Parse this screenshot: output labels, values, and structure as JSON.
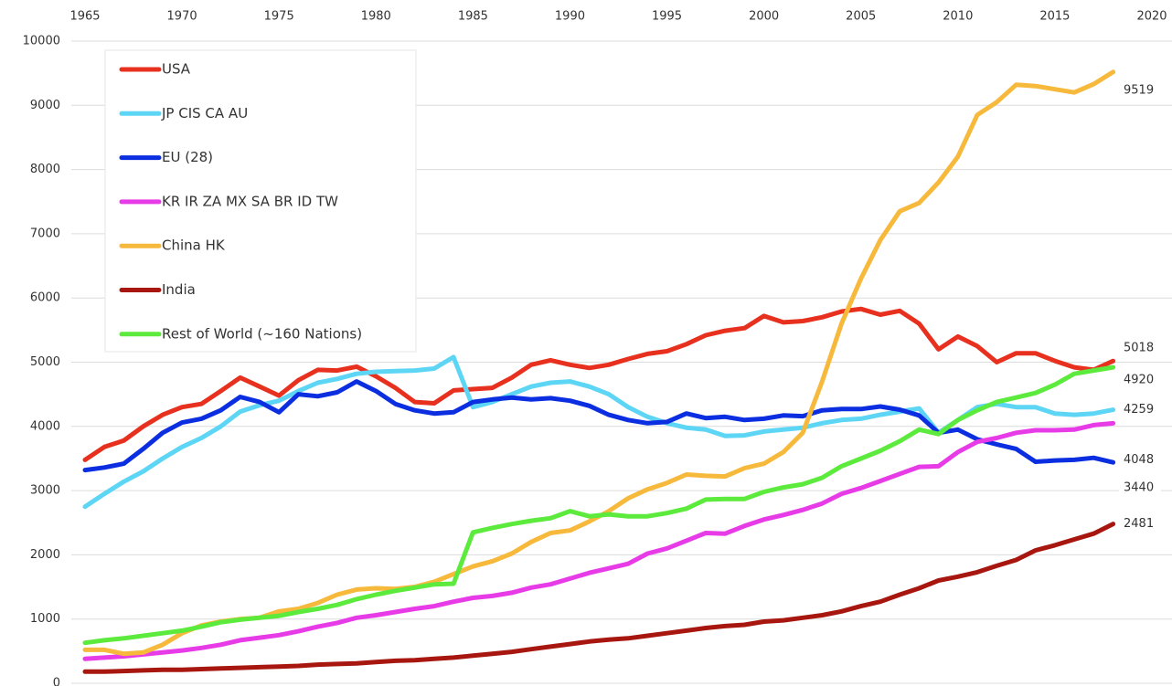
{
  "chart_data": {
    "type": "line",
    "x": [
      1965,
      1966,
      1967,
      1968,
      1969,
      1970,
      1971,
      1972,
      1973,
      1974,
      1975,
      1976,
      1977,
      1978,
      1979,
      1980,
      1981,
      1982,
      1983,
      1984,
      1985,
      1986,
      1987,
      1988,
      1989,
      1990,
      1991,
      1992,
      1993,
      1994,
      1995,
      1996,
      1997,
      1998,
      1999,
      2000,
      2001,
      2002,
      2003,
      2004,
      2005,
      2006,
      2007,
      2008,
      2009,
      2010,
      2011,
      2012,
      2013,
      2014,
      2015,
      2016,
      2017,
      2018
    ],
    "xlim": [
      1965,
      2020
    ],
    "xticks": [
      1965,
      1970,
      1975,
      1980,
      1985,
      1990,
      1995,
      2000,
      2005,
      2010,
      2015,
      2020
    ],
    "ylim": [
      0,
      10000
    ],
    "yticks": [
      0,
      1000,
      2000,
      3000,
      4000,
      5000,
      6000,
      7000,
      8000,
      9000,
      10000
    ],
    "grid": true,
    "legend": "upper left",
    "series": [
      {
        "name": "USA",
        "color": "#e8301f",
        "values": [
          3480,
          3680,
          3780,
          4000,
          4180,
          4300,
          4350,
          4550,
          4760,
          4620,
          4480,
          4720,
          4880,
          4870,
          4930,
          4780,
          4600,
          4380,
          4360,
          4560,
          4580,
          4600,
          4760,
          4960,
          5030,
          4960,
          4910,
          4960,
          5050,
          5130,
          5170,
          5280,
          5420,
          5490,
          5530,
          5720,
          5620,
          5640,
          5700,
          5790,
          5830,
          5740,
          5800,
          5600,
          5200,
          5400,
          5250,
          5000,
          5140,
          5140,
          5020,
          4920,
          4880,
          5018
        ]
      },
      {
        "name": "JP CIS CA AU",
        "color": "#5dd5f5",
        "values": [
          2750,
          2950,
          3140,
          3300,
          3500,
          3680,
          3820,
          4000,
          4230,
          4330,
          4400,
          4550,
          4680,
          4740,
          4820,
          4850,
          4860,
          4870,
          4900,
          5080,
          4300,
          4380,
          4500,
          4620,
          4680,
          4700,
          4620,
          4500,
          4300,
          4150,
          4050,
          3980,
          3950,
          3850,
          3860,
          3920,
          3950,
          3980,
          4050,
          4100,
          4120,
          4180,
          4230,
          4280,
          3900,
          4100,
          4300,
          4350,
          4300,
          4300,
          4200,
          4180,
          4200,
          4259
        ]
      },
      {
        "name": "EU (28)",
        "color": "#0a2ee0",
        "values": [
          3320,
          3360,
          3420,
          3650,
          3900,
          4060,
          4120,
          4250,
          4460,
          4380,
          4220,
          4500,
          4470,
          4530,
          4700,
          4550,
          4350,
          4250,
          4200,
          4220,
          4380,
          4420,
          4450,
          4420,
          4440,
          4400,
          4320,
          4180,
          4100,
          4050,
          4070,
          4200,
          4130,
          4150,
          4100,
          4120,
          4170,
          4160,
          4250,
          4270,
          4270,
          4310,
          4260,
          4170,
          3900,
          3950,
          3800,
          3720,
          3650,
          3450,
          3470,
          3480,
          3510,
          3440
        ]
      },
      {
        "name": "KR IR ZA MX SA BR ID TW",
        "color": "#e83be8",
        "values": [
          380,
          400,
          420,
          450,
          480,
          510,
          550,
          600,
          670,
          710,
          750,
          810,
          880,
          940,
          1020,
          1060,
          1110,
          1160,
          1200,
          1270,
          1330,
          1360,
          1410,
          1490,
          1540,
          1630,
          1720,
          1790,
          1860,
          2020,
          2100,
          2220,
          2340,
          2330,
          2450,
          2550,
          2620,
          2700,
          2800,
          2950,
          3040,
          3150,
          3260,
          3370,
          3380,
          3600,
          3760,
          3820,
          3900,
          3940,
          3940,
          3950,
          4020,
          4048
        ]
      },
      {
        "name": "China HK",
        "color": "#f6b93b",
        "values": [
          520,
          520,
          460,
          480,
          600,
          780,
          900,
          960,
          1000,
          1020,
          1120,
          1160,
          1250,
          1380,
          1460,
          1480,
          1470,
          1500,
          1580,
          1700,
          1820,
          1900,
          2020,
          2200,
          2340,
          2380,
          2520,
          2680,
          2880,
          3020,
          3120,
          3250,
          3230,
          3220,
          3350,
          3420,
          3600,
          3900,
          4700,
          5600,
          6300,
          6900,
          7350,
          7480,
          7800,
          8200,
          8850,
          9050,
          9320,
          9300,
          9250,
          9200,
          9330,
          9519
        ]
      },
      {
        "name": "India",
        "color": "#a8170f",
        "values": [
          180,
          180,
          190,
          200,
          210,
          210,
          220,
          230,
          240,
          250,
          260,
          270,
          290,
          300,
          310,
          330,
          350,
          360,
          380,
          400,
          430,
          460,
          490,
          530,
          570,
          610,
          650,
          680,
          700,
          740,
          780,
          820,
          860,
          890,
          910,
          960,
          980,
          1020,
          1060,
          1120,
          1200,
          1270,
          1380,
          1480,
          1600,
          1660,
          1730,
          1830,
          1920,
          2070,
          2150,
          2240,
          2330,
          2481
        ]
      },
      {
        "name": "Rest of World (~160 Nations)",
        "color": "#5cea3c",
        "values": [
          630,
          670,
          700,
          740,
          780,
          820,
          880,
          950,
          990,
          1020,
          1050,
          1110,
          1160,
          1220,
          1310,
          1380,
          1440,
          1490,
          1540,
          1550,
          2350,
          2420,
          2480,
          2530,
          2570,
          2680,
          2600,
          2630,
          2600,
          2600,
          2650,
          2720,
          2860,
          2870,
          2870,
          2980,
          3050,
          3100,
          3200,
          3380,
          3500,
          3620,
          3770,
          3950,
          3880,
          4100,
          4250,
          4380,
          4450,
          4520,
          4650,
          4820,
          4870,
          4920
        ]
      }
    ]
  }
}
